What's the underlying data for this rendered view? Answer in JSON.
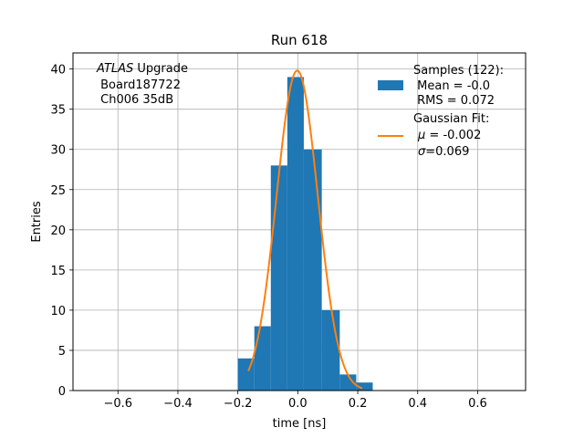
{
  "chart_data": {
    "type": "bar",
    "title": "Run 618",
    "xlabel": "time [ns]",
    "ylabel": "Entries",
    "xlim": [
      -0.75,
      0.76
    ],
    "ylim": [
      0,
      42
    ],
    "grid": true,
    "legend_position": "top-right",
    "annotation": {
      "line1_italic": "ATLAS",
      "line1_rest": " Upgrade",
      "line2": " Board187722",
      "line3": " Ch006 35dB"
    },
    "x_ticks": [
      -0.6,
      -0.4,
      -0.2,
      0.0,
      0.2,
      0.4,
      0.6
    ],
    "x_tick_labels": [
      "−0.6",
      "−0.4",
      "−0.2",
      "0.0",
      "0.2",
      "0.4",
      "0.6"
    ],
    "y_ticks": [
      0,
      5,
      10,
      15,
      20,
      25,
      30,
      35,
      40
    ],
    "y_tick_labels": [
      "0",
      "5",
      "10",
      "15",
      "20",
      "25",
      "30",
      "35",
      "40"
    ],
    "histogram": {
      "name": "Samples (122):",
      "color": "#1f77b4",
      "bins": [
        {
          "x0": -0.2,
          "x1": -0.145,
          "count": 4
        },
        {
          "x0": -0.145,
          "x1": -0.09,
          "count": 8
        },
        {
          "x0": -0.09,
          "x1": -0.035,
          "count": 28
        },
        {
          "x0": -0.035,
          "x1": 0.02,
          "count": 39
        },
        {
          "x0": 0.02,
          "x1": 0.08,
          "count": 30
        },
        {
          "x0": 0.08,
          "x1": 0.14,
          "count": 10
        },
        {
          "x0": 0.14,
          "x1": 0.195,
          "count": 2
        },
        {
          "x0": 0.195,
          "x1": 0.25,
          "count": 1
        }
      ]
    },
    "fit": {
      "name": "Gaussian Fit:",
      "color": "#ff7f0e",
      "amplitude": 39.8,
      "mu": -0.002,
      "sigma": 0.069,
      "x_range": [
        -0.165,
        0.215
      ]
    },
    "legend": {
      "samples_line1": "Samples (122):",
      "samples_line2": " Mean = -0.0",
      "samples_line3": " RMS = 0.072",
      "fit_line1": "Gaussian Fit:",
      "fit_mu_symbol": "μ",
      "fit_mu_rest": " = -0.002",
      "fit_sigma_symbol": "σ",
      "fit_sigma_rest": "=0.069"
    }
  }
}
